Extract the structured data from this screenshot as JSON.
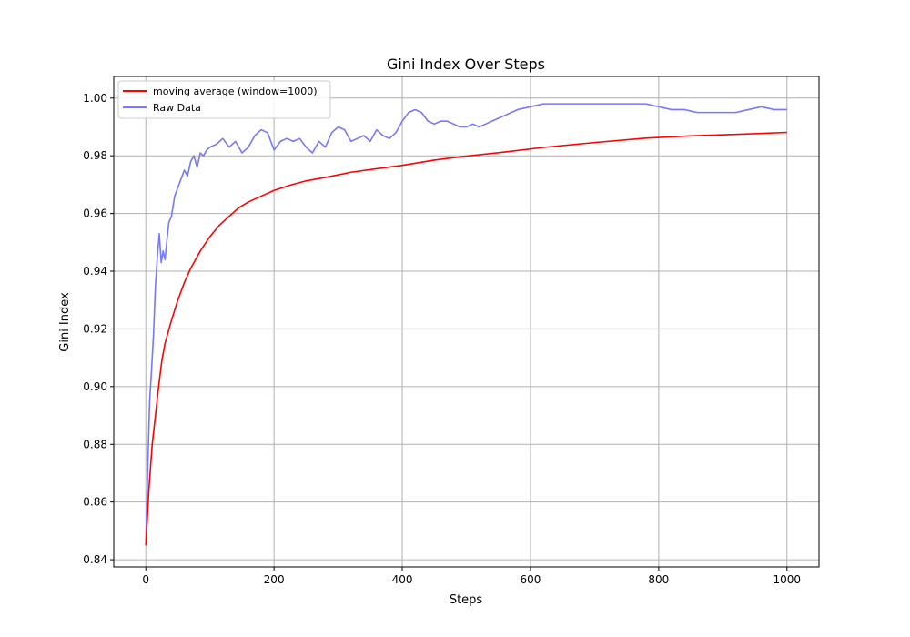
{
  "chart_data": {
    "type": "line",
    "title": "Gini Index Over Steps",
    "xlabel": "Steps",
    "ylabel": "Gini Index",
    "xlim": [
      -50,
      1050
    ],
    "ylim": [
      0.8375,
      1.0075
    ],
    "xticks": [
      0,
      200,
      400,
      600,
      800,
      1000
    ],
    "yticks": [
      0.84,
      0.86,
      0.88,
      0.9,
      0.92,
      0.94,
      0.96,
      0.98,
      1.0
    ],
    "xtick_labels": [
      "0",
      "200",
      "400",
      "600",
      "800",
      "1000"
    ],
    "ytick_labels": [
      "0.84",
      "0.86",
      "0.88",
      "0.90",
      "0.92",
      "0.94",
      "0.96",
      "0.98",
      "1.00"
    ],
    "grid": true,
    "legend_position": "top-left",
    "series": [
      {
        "name": "moving average (window=1000)",
        "color": "#ff0000",
        "x": [
          0,
          5,
          10,
          15,
          20,
          25,
          30,
          40,
          50,
          60,
          70,
          85,
          100,
          115,
          130,
          145,
          160,
          180,
          200,
          225,
          250,
          280,
          320,
          360,
          400,
          450,
          500,
          560,
          620,
          700,
          780,
          850,
          920,
          1000
        ],
        "y": [
          0.845,
          0.865,
          0.88,
          0.89,
          0.9,
          0.909,
          0.915,
          0.923,
          0.93,
          0.936,
          0.941,
          0.947,
          0.952,
          0.956,
          0.959,
          0.962,
          0.964,
          0.966,
          0.968,
          0.9698,
          0.9713,
          0.9725,
          0.9743,
          0.9755,
          0.9767,
          0.9785,
          0.9799,
          0.9813,
          0.9829,
          0.9846,
          0.9861,
          0.9869,
          0.9874,
          0.9881
        ]
      },
      {
        "name": "Raw Data",
        "color": "#7777ff",
        "x": [
          0,
          3,
          6,
          9,
          12,
          15,
          18,
          21,
          24,
          27,
          30,
          33,
          36,
          40,
          45,
          50,
          55,
          60,
          65,
          70,
          75,
          80,
          85,
          90,
          95,
          100,
          110,
          120,
          130,
          140,
          150,
          160,
          170,
          180,
          190,
          200,
          210,
          220,
          230,
          240,
          250,
          260,
          270,
          280,
          290,
          300,
          310,
          320,
          330,
          340,
          350,
          360,
          370,
          380,
          390,
          400,
          410,
          420,
          430,
          440,
          450,
          460,
          470,
          480,
          490,
          500,
          510,
          520,
          530,
          540,
          550,
          560,
          580,
          600,
          620,
          640,
          660,
          680,
          700,
          720,
          740,
          760,
          780,
          800,
          820,
          840,
          860,
          880,
          900,
          920,
          940,
          960,
          980,
          1000
        ],
        "y": [
          0.845,
          0.872,
          0.895,
          0.906,
          0.918,
          0.935,
          0.945,
          0.953,
          0.943,
          0.947,
          0.944,
          0.951,
          0.957,
          0.959,
          0.966,
          0.969,
          0.972,
          0.975,
          0.973,
          0.978,
          0.98,
          0.976,
          0.981,
          0.98,
          0.982,
          0.983,
          0.984,
          0.986,
          0.983,
          0.985,
          0.981,
          0.983,
          0.987,
          0.989,
          0.988,
          0.982,
          0.985,
          0.986,
          0.985,
          0.986,
          0.983,
          0.981,
          0.985,
          0.983,
          0.988,
          0.99,
          0.989,
          0.985,
          0.986,
          0.987,
          0.985,
          0.989,
          0.987,
          0.986,
          0.988,
          0.992,
          0.995,
          0.996,
          0.995,
          0.992,
          0.991,
          0.992,
          0.992,
          0.991,
          0.99,
          0.99,
          0.991,
          0.99,
          0.991,
          0.992,
          0.993,
          0.994,
          0.996,
          0.997,
          0.998,
          0.998,
          0.998,
          0.998,
          0.998,
          0.998,
          0.998,
          0.998,
          0.998,
          0.997,
          0.996,
          0.996,
          0.995,
          0.995,
          0.995,
          0.995,
          0.996,
          0.997,
          0.996,
          0.996
        ]
      }
    ]
  }
}
